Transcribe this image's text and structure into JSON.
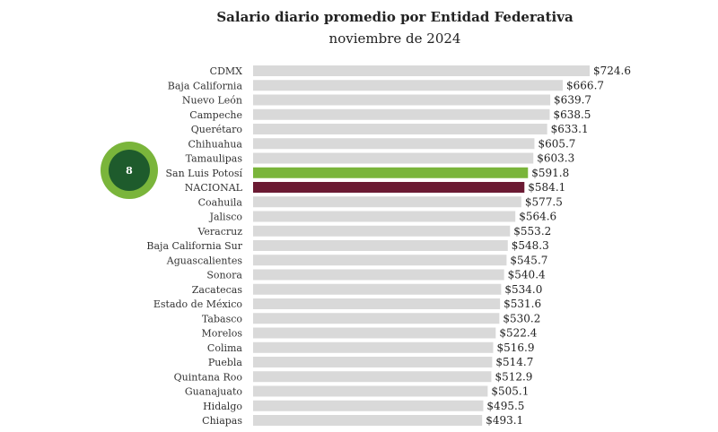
{
  "chart_data": {
    "type": "bar",
    "orientation": "horizontal",
    "title": "Salario diario promedio por Entidad Federativa",
    "subtitle": "noviembre de 2024",
    "categories": [
      "CDMX",
      "Baja California",
      "Nuevo León",
      "Campeche",
      "Querétaro",
      "Chihuahua",
      "Tamaulipas",
      "San Luis Potosí",
      "NACIONAL",
      "Coahuila",
      "Jalisco",
      "Veracruz",
      "Baja California Sur",
      "Aguascalientes",
      "Sonora",
      "Zacatecas",
      "Estado de México",
      "Tabasco",
      "Morelos",
      "Colima",
      "Puebla",
      "Quintana Roo",
      "Guanajuato",
      "Hidalgo",
      "Chiapas"
    ],
    "values": [
      724.6,
      666.7,
      639.7,
      638.5,
      633.1,
      605.7,
      603.3,
      591.8,
      584.1,
      577.5,
      564.6,
      553.2,
      548.3,
      545.7,
      540.4,
      534.0,
      531.6,
      530.2,
      522.4,
      516.9,
      514.7,
      512.9,
      505.1,
      495.5,
      493.1
    ],
    "value_labels": [
      "$724.6",
      "$666.7",
      "$639.7",
      "$638.5",
      "$633.1",
      "$605.7",
      "$603.3",
      "$591.8",
      "$584.1",
      "$577.5",
      "$564.6",
      "$553.2",
      "$548.3",
      "$545.7",
      "$540.4",
      "$534.0",
      "$531.6",
      "$530.2",
      "$522.4",
      "$516.9",
      "$514.7",
      "$512.9",
      "$505.1",
      "$495.5",
      "$493.1"
    ],
    "highlight": {
      "San Luis Potosí": "#7ab53b",
      "NACIONAL": "#6b1a33"
    },
    "default_color": "#d9d9d9",
    "xlim": [
      0,
      724.6
    ]
  },
  "badge": {
    "rank": "8",
    "outer_color": "#7ab53b",
    "inner_color": "#1e5b2c"
  }
}
